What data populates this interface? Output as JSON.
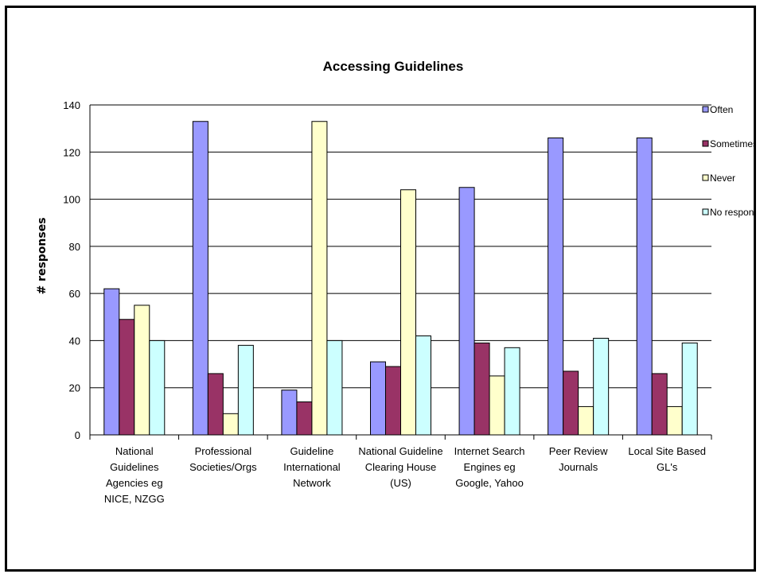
{
  "colors": {
    "often": "#9999ff",
    "sometimes": "#993366",
    "never": "#ffffcc",
    "no_response": "#ccffff"
  },
  "chart_data": {
    "type": "bar",
    "title": "Accessing Guidelines",
    "xlabel": "",
    "ylabel": "# responses",
    "ylim": [
      0,
      140
    ],
    "yticks": [
      0,
      20,
      40,
      60,
      80,
      100,
      120,
      140
    ],
    "grid": true,
    "legend_position": "right",
    "categories": [
      [
        "National",
        "Guidelines",
        "Agencies eg",
        "NICE, NZGG"
      ],
      [
        "Professional",
        "Societies/Orgs"
      ],
      [
        "Guideline",
        "International",
        "Network"
      ],
      [
        "National Guideline",
        "Clearing House",
        "(US)"
      ],
      [
        "Internet Search",
        "Engines eg",
        "Google, Yahoo"
      ],
      [
        "Peer Review",
        "Journals"
      ],
      [
        "Local Site Based",
        "GL's"
      ]
    ],
    "series": [
      {
        "name": "Often",
        "color": "#9999ff",
        "values": [
          62,
          133,
          19,
          31,
          105,
          126,
          126
        ]
      },
      {
        "name": "Sometimes",
        "color": "#993366",
        "values": [
          49,
          26,
          14,
          29,
          39,
          27,
          26
        ]
      },
      {
        "name": "Never",
        "color": "#ffffcc",
        "values": [
          55,
          9,
          133,
          104,
          25,
          12,
          12
        ]
      },
      {
        "name": "No response",
        "color": "#ccffff",
        "values": [
          40,
          38,
          40,
          42,
          37,
          41,
          39
        ]
      }
    ]
  }
}
